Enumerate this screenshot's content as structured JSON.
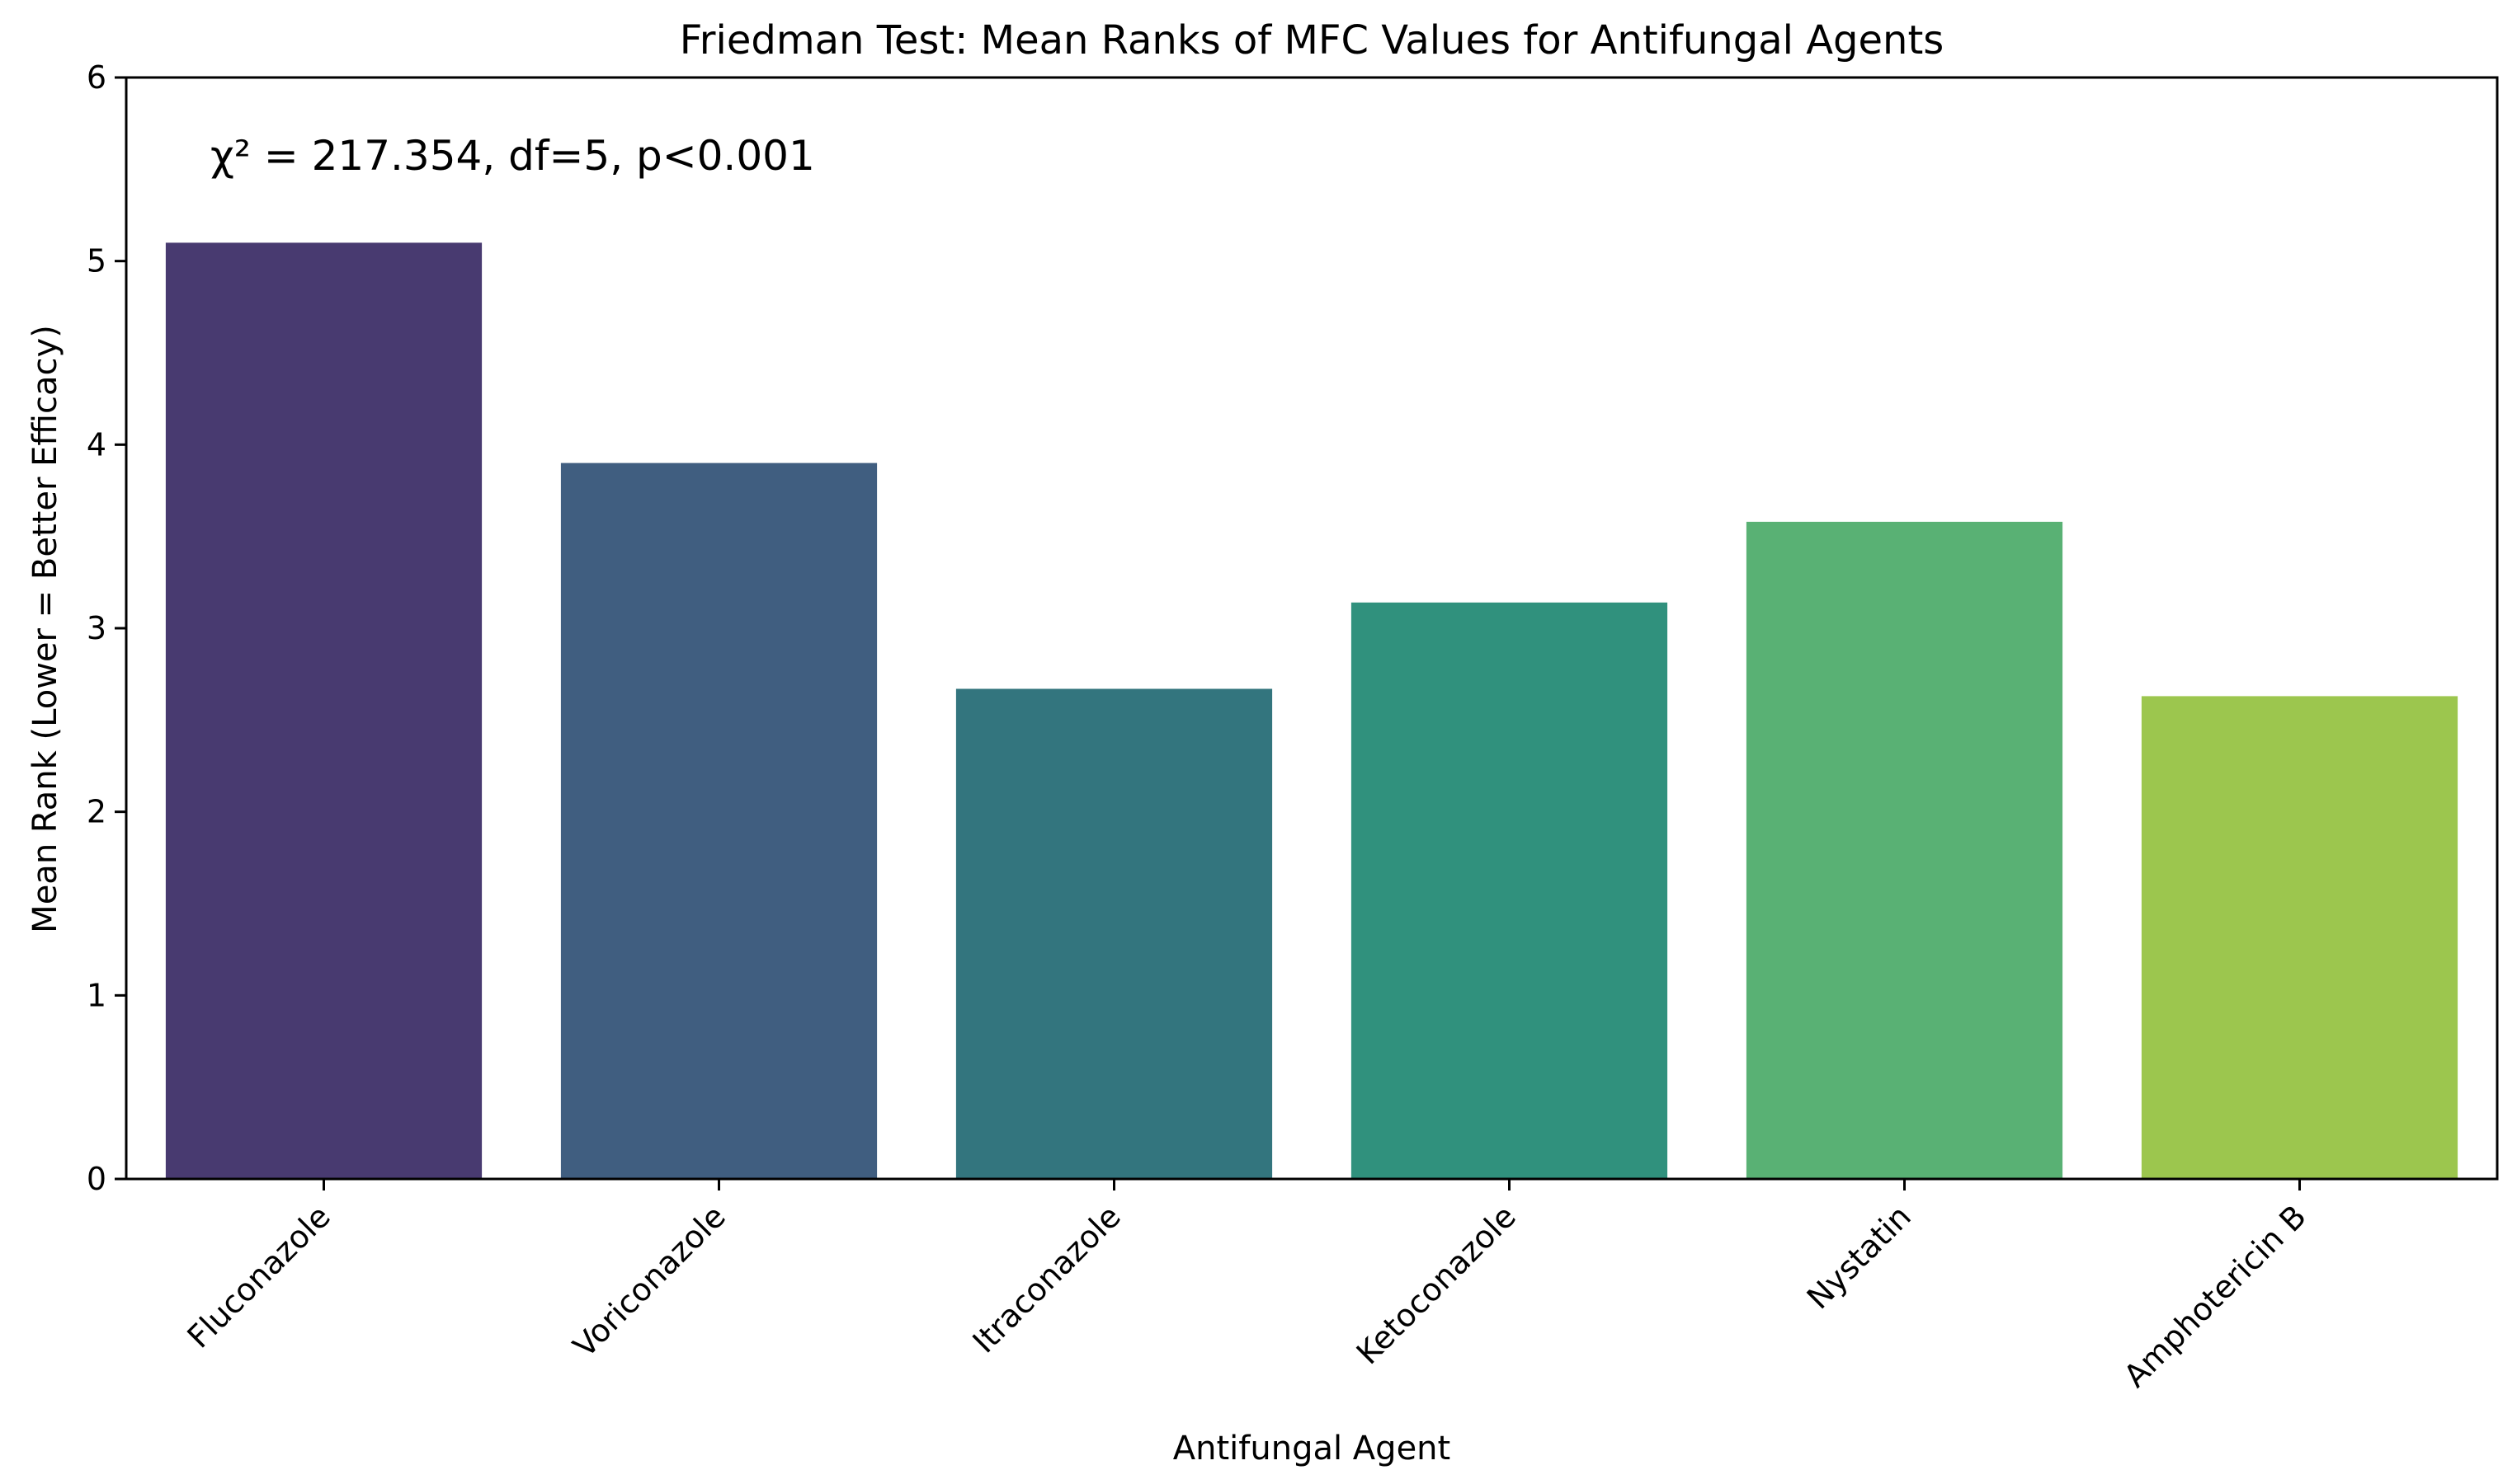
{
  "chart_data": {
    "type": "bar",
    "title": "Friedman Test: Mean Ranks of MFC Values for Antifungal Agents",
    "xlabel": "Antifungal Agent",
    "ylabel": "Mean Rank (Lower = Better Efficacy)",
    "categories": [
      "Fluconazole",
      "Voriconazole",
      "Itraconazole",
      "Ketoconazole",
      "Nystatin",
      "Amphotericin B"
    ],
    "values": [
      5.1,
      3.9,
      2.67,
      3.14,
      3.58,
      2.63
    ],
    "colors": [
      "#483a70",
      "#405e80",
      "#33757e",
      "#30917d",
      "#59b174",
      "#9cc64e"
    ],
    "ylim": [
      0,
      6
    ],
    "yticks": [
      0,
      1,
      2,
      3,
      4,
      5,
      6
    ],
    "annotation": "χ² = 217.354, df=5, p<0.001",
    "grid": false,
    "legend": "none"
  }
}
